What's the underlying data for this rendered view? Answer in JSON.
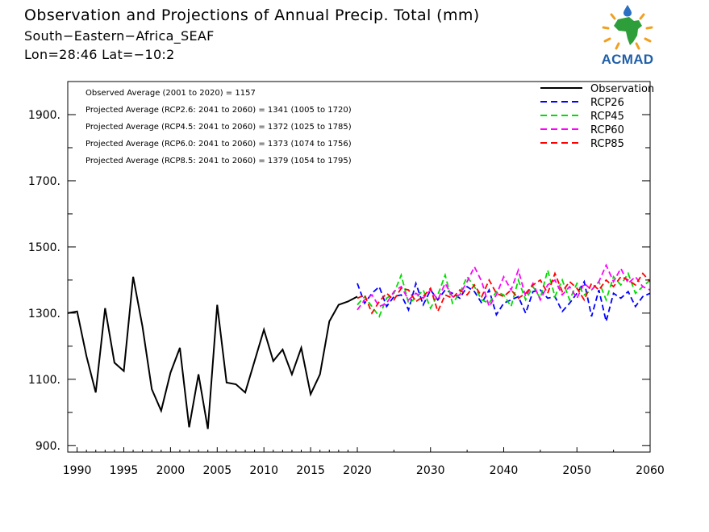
{
  "title": {
    "line1": "Observation and Projections of Annual Precip. Total (mm)",
    "line2": "South−Eastern−Africa_SEAF",
    "line3": "Lon=28:46   Lat=−10:2"
  },
  "logo": {
    "text": "ACMAD",
    "icon": "africa-sun-logo-icon"
  },
  "chart_data": {
    "type": "line",
    "xlim": [
      1989,
      2060
    ],
    "ylim": [
      880,
      2000
    ],
    "x_tick_labels": [
      "1990",
      "1995",
      "2000",
      "2005",
      "2010",
      "2015",
      "2020",
      "2030",
      "2040",
      "2050",
      "2060"
    ],
    "x_tick_values": [
      1990,
      1995,
      2000,
      2005,
      2010,
      2015,
      2020,
      2030,
      2040,
      2050,
      2060
    ],
    "y_tick_labels": [
      "900.",
      "1100.",
      "1300.",
      "1500.",
      "1700.",
      "1900."
    ],
    "y_tick_values": [
      900,
      1100,
      1300,
      1500,
      1700,
      1900
    ],
    "x_axis_breakpoint": 2020,
    "annotations": [
      "Observed Average (2001 to 2020) = 1157",
      "Projected Average (RCP2.6: 2041 to 2060) = 1341 (1005 to 1720)",
      "Projected Average (RCP4.5: 2041 to 2060) = 1372 (1025 to 1785)",
      "Projected Average (RCP6.0: 2041 to 2060) = 1373 (1074 to 1756)",
      "Projected Average (RCP8.5: 2041 to 2060) = 1379 (1054 to 1795)"
    ],
    "legend_position": "top-right",
    "series": [
      {
        "name": "Observation",
        "color": "#000000",
        "dash": "solid",
        "x": [
          1989,
          1990,
          1991,
          1992,
          1993,
          1994,
          1995,
          1996,
          1997,
          1998,
          1999,
          2000,
          2001,
          2002,
          2003,
          2004,
          2005,
          2006,
          2007,
          2008,
          2009,
          2010,
          2011,
          2012,
          2013,
          2014,
          2015,
          2016,
          2017,
          2018,
          2019,
          2020
        ],
        "values": [
          1300,
          1305,
          1170,
          1060,
          1315,
          1150,
          1125,
          1410,
          1260,
          1070,
          1005,
          1120,
          1195,
          955,
          1115,
          950,
          1325,
          1090,
          1085,
          1060,
          1155,
          1250,
          1155,
          1190,
          1115,
          1195,
          1055,
          1115,
          1275,
          1325,
          1335,
          1350
        ]
      },
      {
        "name": "RCP26",
        "color": "#0000ff",
        "dash": "dashed",
        "x": [
          2020,
          2021,
          2022,
          2023,
          2024,
          2025,
          2026,
          2027,
          2028,
          2029,
          2030,
          2031,
          2032,
          2033,
          2034,
          2035,
          2036,
          2037,
          2038,
          2039,
          2040,
          2041,
          2042,
          2043,
          2044,
          2045,
          2046,
          2047,
          2048,
          2049,
          2050,
          2051,
          2052,
          2053,
          2054,
          2055,
          2056,
          2057,
          2058,
          2059,
          2060
        ],
        "values": [
          1390,
          1330,
          1360,
          1380,
          1320,
          1350,
          1355,
          1310,
          1390,
          1325,
          1370,
          1340,
          1370,
          1360,
          1345,
          1380,
          1365,
          1330,
          1370,
          1295,
          1330,
          1340,
          1350,
          1300,
          1365,
          1370,
          1345,
          1350,
          1305,
          1330,
          1360,
          1395,
          1290,
          1370,
          1275,
          1360,
          1345,
          1365,
          1320,
          1350,
          1360
        ]
      },
      {
        "name": "RCP45",
        "color": "#00dd00",
        "dash": "dashed",
        "x": [
          2020,
          2021,
          2022,
          2023,
          2024,
          2025,
          2026,
          2027,
          2028,
          2029,
          2030,
          2031,
          2032,
          2033,
          2034,
          2035,
          2036,
          2037,
          2038,
          2039,
          2040,
          2041,
          2042,
          2043,
          2044,
          2045,
          2046,
          2047,
          2048,
          2049,
          2050,
          2051,
          2052,
          2053,
          2054,
          2055,
          2056,
          2057,
          2058,
          2059,
          2060
        ],
        "values": [
          1325,
          1350,
          1320,
          1290,
          1345,
          1360,
          1415,
          1330,
          1345,
          1370,
          1315,
          1355,
          1415,
          1330,
          1360,
          1410,
          1380,
          1340,
          1330,
          1365,
          1355,
          1320,
          1400,
          1340,
          1380,
          1345,
          1430,
          1350,
          1400,
          1340,
          1390,
          1355,
          1370,
          1395,
          1340,
          1410,
          1385,
          1420,
          1360,
          1380,
          1400
        ]
      },
      {
        "name": "RCP60",
        "color": "#ff00ff",
        "dash": "dashed",
        "x": [
          2020,
          2021,
          2022,
          2023,
          2024,
          2025,
          2026,
          2027,
          2028,
          2029,
          2030,
          2031,
          2032,
          2033,
          2034,
          2035,
          2036,
          2037,
          2038,
          2039,
          2040,
          2041,
          2042,
          2043,
          2044,
          2045,
          2046,
          2047,
          2048,
          2049,
          2050,
          2051,
          2052,
          2053,
          2054,
          2055,
          2056,
          2057,
          2058,
          2059,
          2060
        ],
        "values": [
          1310,
          1340,
          1355,
          1320,
          1330,
          1365,
          1380,
          1340,
          1360,
          1345,
          1370,
          1340,
          1390,
          1350,
          1355,
          1395,
          1440,
          1395,
          1320,
          1355,
          1410,
          1370,
          1430,
          1350,
          1390,
          1340,
          1385,
          1400,
          1355,
          1380,
          1345,
          1390,
          1370,
          1395,
          1445,
          1395,
          1435,
          1390,
          1410,
          1380,
          1370
        ]
      },
      {
        "name": "RCP85",
        "color": "#ff0000",
        "dash": "dashed",
        "x": [
          2020,
          2021,
          2022,
          2023,
          2024,
          2025,
          2026,
          2027,
          2028,
          2029,
          2030,
          2031,
          2032,
          2033,
          2034,
          2035,
          2036,
          2037,
          2038,
          2039,
          2040,
          2041,
          2042,
          2043,
          2044,
          2045,
          2046,
          2047,
          2048,
          2049,
          2050,
          2051,
          2052,
          2053,
          2054,
          2055,
          2056,
          2057,
          2058,
          2059,
          2060
        ],
        "values": [
          1345,
          1355,
          1300,
          1335,
          1360,
          1340,
          1375,
          1370,
          1335,
          1350,
          1375,
          1305,
          1355,
          1345,
          1370,
          1355,
          1385,
          1350,
          1400,
          1360,
          1350,
          1370,
          1345,
          1360,
          1385,
          1400,
          1360,
          1420,
          1365,
          1395,
          1375,
          1340,
          1390,
          1370,
          1400,
          1380,
          1410,
          1400,
          1385,
          1420,
          1395
        ]
      }
    ]
  }
}
